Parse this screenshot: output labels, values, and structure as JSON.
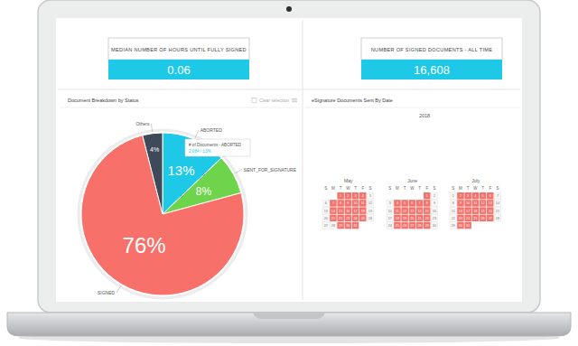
{
  "kpis": [
    {
      "title": "MEDIAN NUMBER OF HOURS UNTIL FULLY SIGNED",
      "value": 0.06,
      "label": "0.06"
    },
    {
      "title": "NUMBER OF SIGNED DOCUMENTS - ALL TIME",
      "value": 16608,
      "label": "16,608"
    }
  ],
  "chart_data": [
    {
      "type": "pie",
      "title": "Document Breakdown by Status",
      "categories": [
        "ABORTED",
        "SENT_FOR_SIGNATURE",
        "SIGNED",
        "Others"
      ],
      "values": [
        13,
        8,
        76,
        4
      ],
      "value_labels": [
        "13%",
        "8%",
        "76%",
        "4%"
      ],
      "colors": [
        "#1ec8e7",
        "#6dd44b",
        "#f8706a",
        "#3e4a59"
      ],
      "data_labels": true,
      "annotations": [
        "# of Documents - ABORTED",
        "2,084 / 13%"
      ],
      "controls": [
        "Clear selection"
      ]
    },
    {
      "type": "calendar",
      "title": "eSignature Documents Sent By Date",
      "year": 2018,
      "weekdays": [
        "S",
        "M",
        "T",
        "W",
        "T",
        "F",
        "S"
      ],
      "color": "#f4736c",
      "months": [
        {
          "name": "May",
          "days": [
            1,
            2,
            3,
            4,
            5,
            6,
            7,
            8,
            9,
            10,
            11,
            12,
            13,
            14,
            15,
            16,
            17,
            18,
            19,
            20,
            21,
            22,
            23,
            24,
            25,
            26,
            27,
            28,
            29,
            30,
            31
          ],
          "values": [
            1,
            1,
            1,
            1,
            0,
            0,
            1,
            1,
            1,
            1,
            1,
            0,
            0,
            1,
            1,
            1,
            1,
            1,
            0,
            0,
            1,
            1,
            1,
            1,
            1,
            0,
            0,
            0,
            1,
            1,
            1
          ]
        },
        {
          "name": "June",
          "days": [
            1,
            2,
            3,
            4,
            5,
            6,
            7,
            8,
            9,
            10,
            11,
            12,
            13,
            14,
            15,
            16,
            17,
            18,
            19,
            20,
            21,
            22,
            23,
            24,
            25,
            26,
            27,
            28,
            29,
            30
          ],
          "values": [
            1,
            0,
            0,
            1,
            1,
            1,
            1,
            1,
            0,
            0,
            1,
            1,
            1,
            1,
            1,
            0,
            0,
            1,
            1,
            1,
            1,
            1,
            0,
            0,
            1,
            1,
            1,
            1,
            1,
            0
          ]
        },
        {
          "name": "July",
          "days": [
            1,
            2,
            3,
            4,
            5,
            6,
            7,
            8,
            9,
            10,
            11,
            12,
            13,
            14,
            15,
            16,
            17,
            18,
            19,
            20,
            21,
            22,
            23,
            24,
            25,
            26,
            27,
            28,
            29,
            30,
            31
          ],
          "values": [
            0,
            1,
            1,
            1,
            1,
            1,
            0,
            0,
            1,
            1,
            1,
            1,
            1,
            0,
            0,
            1,
            1,
            1,
            1,
            1,
            0,
            0,
            1,
            1,
            1,
            1,
            1,
            0,
            0,
            1,
            1
          ]
        }
      ]
    }
  ]
}
